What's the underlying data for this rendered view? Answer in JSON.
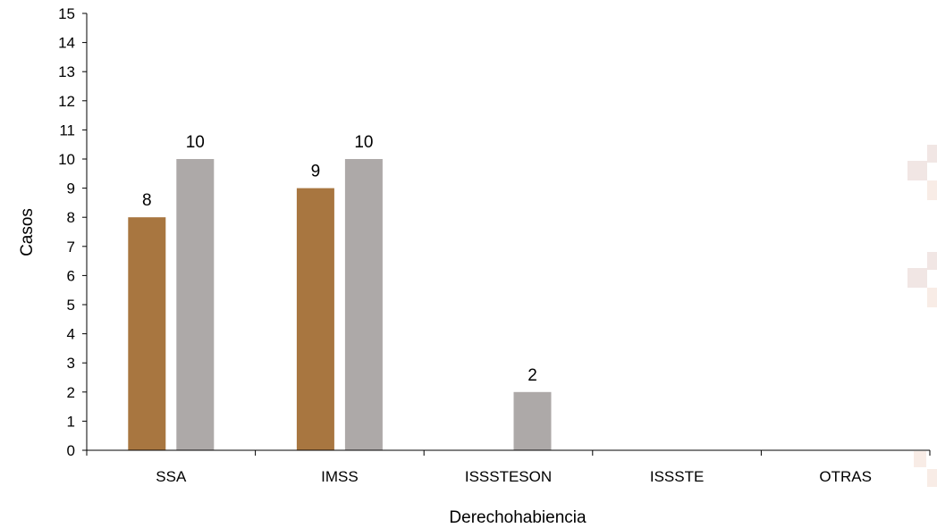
{
  "chart_data": {
    "type": "bar",
    "xlabel": "Derechohabiencia",
    "ylabel": "Casos",
    "categories": [
      "SSA",
      "IMSS",
      "ISSSTESON",
      "ISSSTE",
      "OTRAS"
    ],
    "series": [
      {
        "values": [
          8,
          9,
          0,
          0,
          0
        ],
        "color": "#A87640"
      },
      {
        "values": [
          10,
          10,
          2,
          0,
          0
        ],
        "color": "#ADA9A8"
      }
    ],
    "data_labels": [
      [
        8,
        9,
        null,
        null,
        null
      ],
      [
        10,
        10,
        2,
        null,
        null
      ]
    ],
    "ylim": [
      0,
      15
    ],
    "yticks": [
      0,
      1,
      2,
      3,
      4,
      5,
      6,
      7,
      8,
      9,
      10,
      11,
      12,
      13,
      14,
      15
    ],
    "grid": false,
    "legend": "none"
  },
  "watermark_colors": [
    "#F1E6E4",
    "#F8ECE6"
  ]
}
